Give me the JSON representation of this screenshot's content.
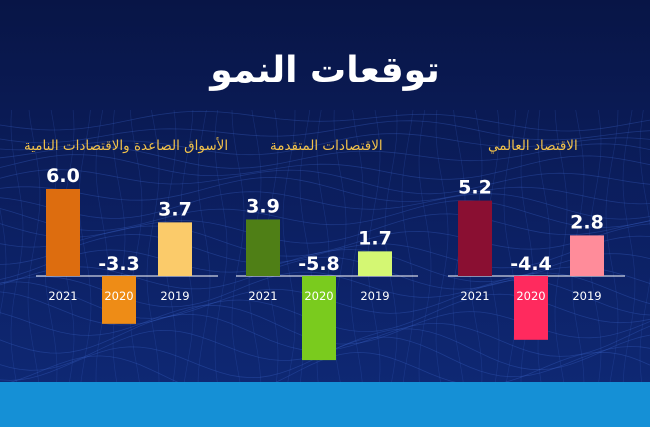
{
  "header": {
    "title": "توقعات النمو"
  },
  "colors": {
    "world": [
      "#8a0f32",
      "#ff2a5e",
      "#ff8c9a"
    ],
    "advanced": [
      "#4f7f16",
      "#7acb1e",
      "#d4f773"
    ],
    "emerging": [
      "#dd6d0f",
      "#ee8c16",
      "#fbcb6a"
    ]
  },
  "chart_data": [
    {
      "type": "bar",
      "title": "الأسواق الصاعدة والاقتصادات النامية",
      "categories": [
        "2021",
        "2020",
        "2019"
      ],
      "values": [
        6.0,
        -3.3,
        3.7
      ],
      "value_labels": [
        "6.0",
        "-3.3",
        "3.7"
      ],
      "palette": "emerging"
    },
    {
      "type": "bar",
      "title": "الاقتصادات المتقدمة",
      "categories": [
        "2021",
        "2020",
        "2019"
      ],
      "values": [
        3.9,
        -5.8,
        1.7
      ],
      "value_labels": [
        "3.9",
        "-5.8",
        "1.7"
      ],
      "palette": "advanced"
    },
    {
      "type": "bar",
      "title": "الاقتصاد العالمي",
      "categories": [
        "2021",
        "2020",
        "2019"
      ],
      "values": [
        5.2,
        -4.4,
        2.8
      ],
      "value_labels": [
        "5.2",
        "-4.4",
        "2.8"
      ],
      "palette": "world"
    }
  ]
}
